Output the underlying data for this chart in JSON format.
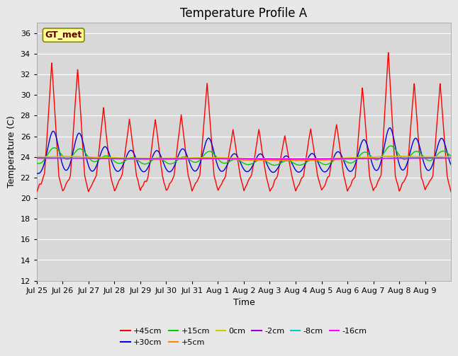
{
  "title": "Temperature Profile A",
  "xlabel": "Time",
  "ylabel": "Temperature (C)",
  "ylim": [
    12,
    37
  ],
  "yticks": [
    12,
    14,
    16,
    18,
    20,
    22,
    24,
    26,
    28,
    30,
    32,
    34,
    36
  ],
  "series_order": [
    "+45cm",
    "+30cm",
    "+15cm",
    "+5cm",
    "0cm",
    "-2cm",
    "-8cm",
    "-16cm"
  ],
  "series": {
    "+45cm": {
      "color": "#ff0000",
      "lw": 1.0
    },
    "+30cm": {
      "color": "#0000dd",
      "lw": 1.0
    },
    "+15cm": {
      "color": "#00cc00",
      "lw": 1.0
    },
    "+5cm": {
      "color": "#ff8800",
      "lw": 1.0
    },
    "0cm": {
      "color": "#cccc00",
      "lw": 1.0
    },
    "-2cm": {
      "color": "#9900cc",
      "lw": 1.0
    },
    "-8cm": {
      "color": "#00cccc",
      "lw": 1.0
    },
    "-16cm": {
      "color": "#ff00ff",
      "lw": 1.0
    }
  },
  "xtick_labels": [
    "Jul 25",
    "Jul 26",
    "Jul 27",
    "Jul 28",
    "Jul 29",
    "Jul 30",
    "Jul 31",
    "Aug 1",
    "Aug 2",
    "Aug 3",
    "Aug 4",
    "Aug 5",
    "Aug 6",
    "Aug 7",
    "Aug 8",
    "Aug 9"
  ],
  "n_points": 2880,
  "days": 16,
  "background_color": "#e8e8e8",
  "plot_bg_color": "#d8d8d8",
  "legend_label_box_color": "#ffff99",
  "legend_label_border_color": "#888800",
  "legend_label_text": "GT_met",
  "grid_color": "#ffffff",
  "title_fontsize": 12,
  "axis_fontsize": 9,
  "tick_fontsize": 8,
  "legend_fontsize": 8
}
